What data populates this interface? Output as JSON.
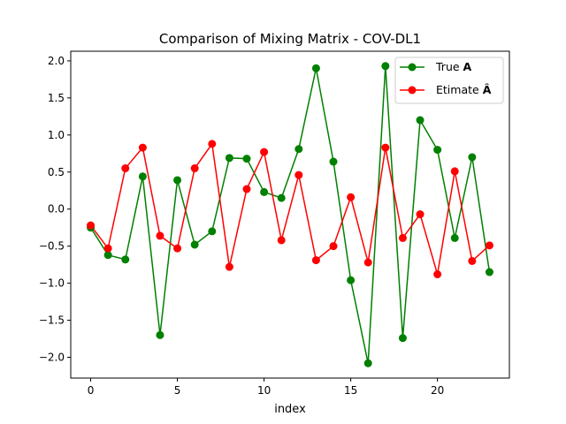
{
  "chart_data": {
    "type": "line",
    "title": "Comparison of Mixing Matrix - COV-DL1",
    "xlabel": "index",
    "ylabel": "",
    "xlim": [
      -1.15,
      24.15
    ],
    "ylim": [
      -2.28,
      2.13
    ],
    "xticks": [
      0,
      5,
      10,
      15,
      20
    ],
    "yticks": [
      -2.0,
      -1.5,
      -1.0,
      -0.5,
      0.0,
      0.5,
      1.0,
      1.5,
      2.0
    ],
    "xtick_labels": [
      "0",
      "5",
      "10",
      "15",
      "20"
    ],
    "ytick_labels": [
      "−2.0",
      "−1.5",
      "−1.0",
      "−0.5",
      "0.0",
      "0.5",
      "1.0",
      "1.5",
      "2.0"
    ],
    "grid": false,
    "legend_position": "upper-right",
    "x": [
      0,
      1,
      2,
      3,
      4,
      5,
      6,
      7,
      8,
      9,
      10,
      11,
      12,
      13,
      14,
      15,
      16,
      17,
      18,
      19,
      20,
      21,
      22,
      23
    ],
    "series": [
      {
        "name": "True A",
        "name_plain": "True ",
        "name_bold": "A",
        "color": "#008000",
        "values": [
          -0.25,
          -0.62,
          -0.68,
          0.44,
          -1.7,
          0.39,
          -0.48,
          -0.3,
          0.69,
          0.68,
          0.23,
          0.15,
          0.81,
          1.9,
          0.64,
          -0.96,
          -2.08,
          1.93,
          -1.74,
          1.2,
          0.8,
          -0.39,
          0.7,
          -0.85
        ]
      },
      {
        "name": "Etimate Â",
        "name_plain": "Etimate ",
        "name_bold": "Â",
        "color": "#ff0000",
        "values": [
          -0.22,
          -0.53,
          0.55,
          0.83,
          -0.36,
          -0.53,
          0.55,
          0.88,
          -0.78,
          0.27,
          0.77,
          -0.42,
          0.46,
          -0.69,
          -0.5,
          0.16,
          -0.72,
          0.83,
          -0.39,
          -0.07,
          -0.88,
          0.51,
          -0.7,
          -0.49
        ]
      }
    ]
  }
}
